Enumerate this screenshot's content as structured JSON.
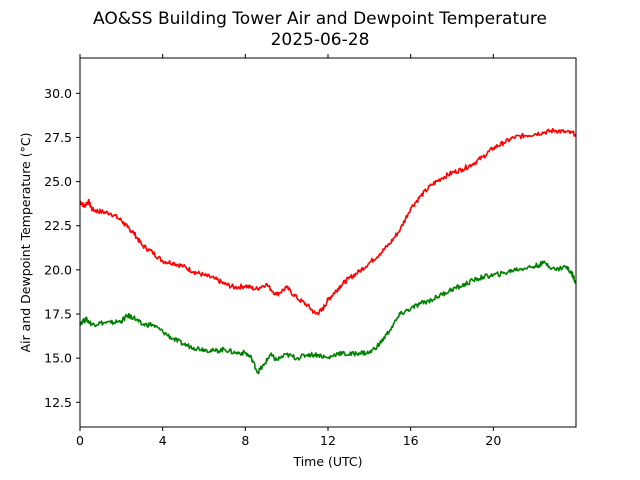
{
  "chart_data": {
    "type": "line",
    "title": "AO&SS Building Tower Air and Dewpoint Temperature",
    "subtitle": "2025-06-28",
    "xlabel": "Time (UTC)",
    "ylabel": "Air and Dewpoint Temperature (°C)",
    "xlim": [
      0,
      24
    ],
    "ylim": [
      11.1,
      32.0
    ],
    "xticks": [
      0,
      4,
      8,
      12,
      16,
      20
    ],
    "yticks": [
      12.5,
      15.0,
      17.5,
      20.0,
      22.5,
      25.0,
      27.5,
      30.0
    ],
    "grid": false,
    "legend": "none",
    "series": [
      {
        "color": "#ff0000",
        "x": [
          0,
          0.2,
          0.4,
          0.6,
          1.0,
          1.5,
          2.0,
          2.3,
          2.6,
          3.0,
          3.5,
          4.0,
          4.5,
          5.0,
          5.5,
          6.0,
          6.5,
          7.0,
          7.5,
          8.0,
          8.5,
          9.0,
          9.5,
          10.0,
          10.5,
          11.0,
          11.4,
          11.7,
          12.0,
          12.3,
          12.6,
          13.0,
          13.5,
          14.0,
          14.5,
          15.0,
          15.5,
          16.0,
          16.5,
          17.0,
          17.5,
          18.0,
          18.5,
          19.0,
          19.5,
          20.0,
          20.5,
          21.0,
          21.5,
          22.0,
          22.5,
          23.0,
          23.5,
          24.0
        ],
        "values": [
          23.9,
          23.6,
          23.9,
          23.4,
          23.3,
          23.2,
          22.8,
          22.4,
          22.1,
          21.4,
          21.0,
          20.5,
          20.4,
          20.2,
          19.9,
          19.7,
          19.5,
          19.2,
          19.0,
          19.1,
          18.9,
          19.2,
          18.6,
          19.0,
          18.4,
          18.0,
          17.5,
          17.7,
          18.3,
          18.7,
          19.1,
          19.5,
          19.9,
          20.4,
          20.9,
          21.5,
          22.3,
          23.5,
          24.2,
          24.8,
          25.2,
          25.5,
          25.7,
          26.0,
          26.4,
          26.9,
          27.2,
          27.5,
          27.6,
          27.7,
          27.8,
          27.9,
          27.8,
          27.7
        ]
      },
      {
        "color": "#008000",
        "x": [
          0,
          0.3,
          0.6,
          1.0,
          1.5,
          2.0,
          2.3,
          2.6,
          3.0,
          3.5,
          4.0,
          4.5,
          5.0,
          5.5,
          6.0,
          6.5,
          7.0,
          7.5,
          8.0,
          8.3,
          8.6,
          8.9,
          9.2,
          9.5,
          10.0,
          10.5,
          11.0,
          11.5,
          12.0,
          12.5,
          13.0,
          13.5,
          14.0,
          14.5,
          15.0,
          15.5,
          16.0,
          16.5,
          17.0,
          17.5,
          18.0,
          18.5,
          19.0,
          19.5,
          20.0,
          20.5,
          21.0,
          21.5,
          22.0,
          22.5,
          23.0,
          23.5,
          23.8,
          24.0
        ],
        "values": [
          17.0,
          17.2,
          16.9,
          17.0,
          17.0,
          17.1,
          17.4,
          17.3,
          16.9,
          16.9,
          16.5,
          16.1,
          15.8,
          15.6,
          15.5,
          15.4,
          15.5,
          15.3,
          15.3,
          15.0,
          14.2,
          14.6,
          15.2,
          14.9,
          15.2,
          15.0,
          15.2,
          15.2,
          15.0,
          15.3,
          15.2,
          15.3,
          15.3,
          15.8,
          16.6,
          17.5,
          17.8,
          18.1,
          18.3,
          18.6,
          18.9,
          19.1,
          19.4,
          19.6,
          19.7,
          19.8,
          20.0,
          20.1,
          20.2,
          20.4,
          20.0,
          20.2,
          19.8,
          19.3
        ]
      }
    ]
  }
}
